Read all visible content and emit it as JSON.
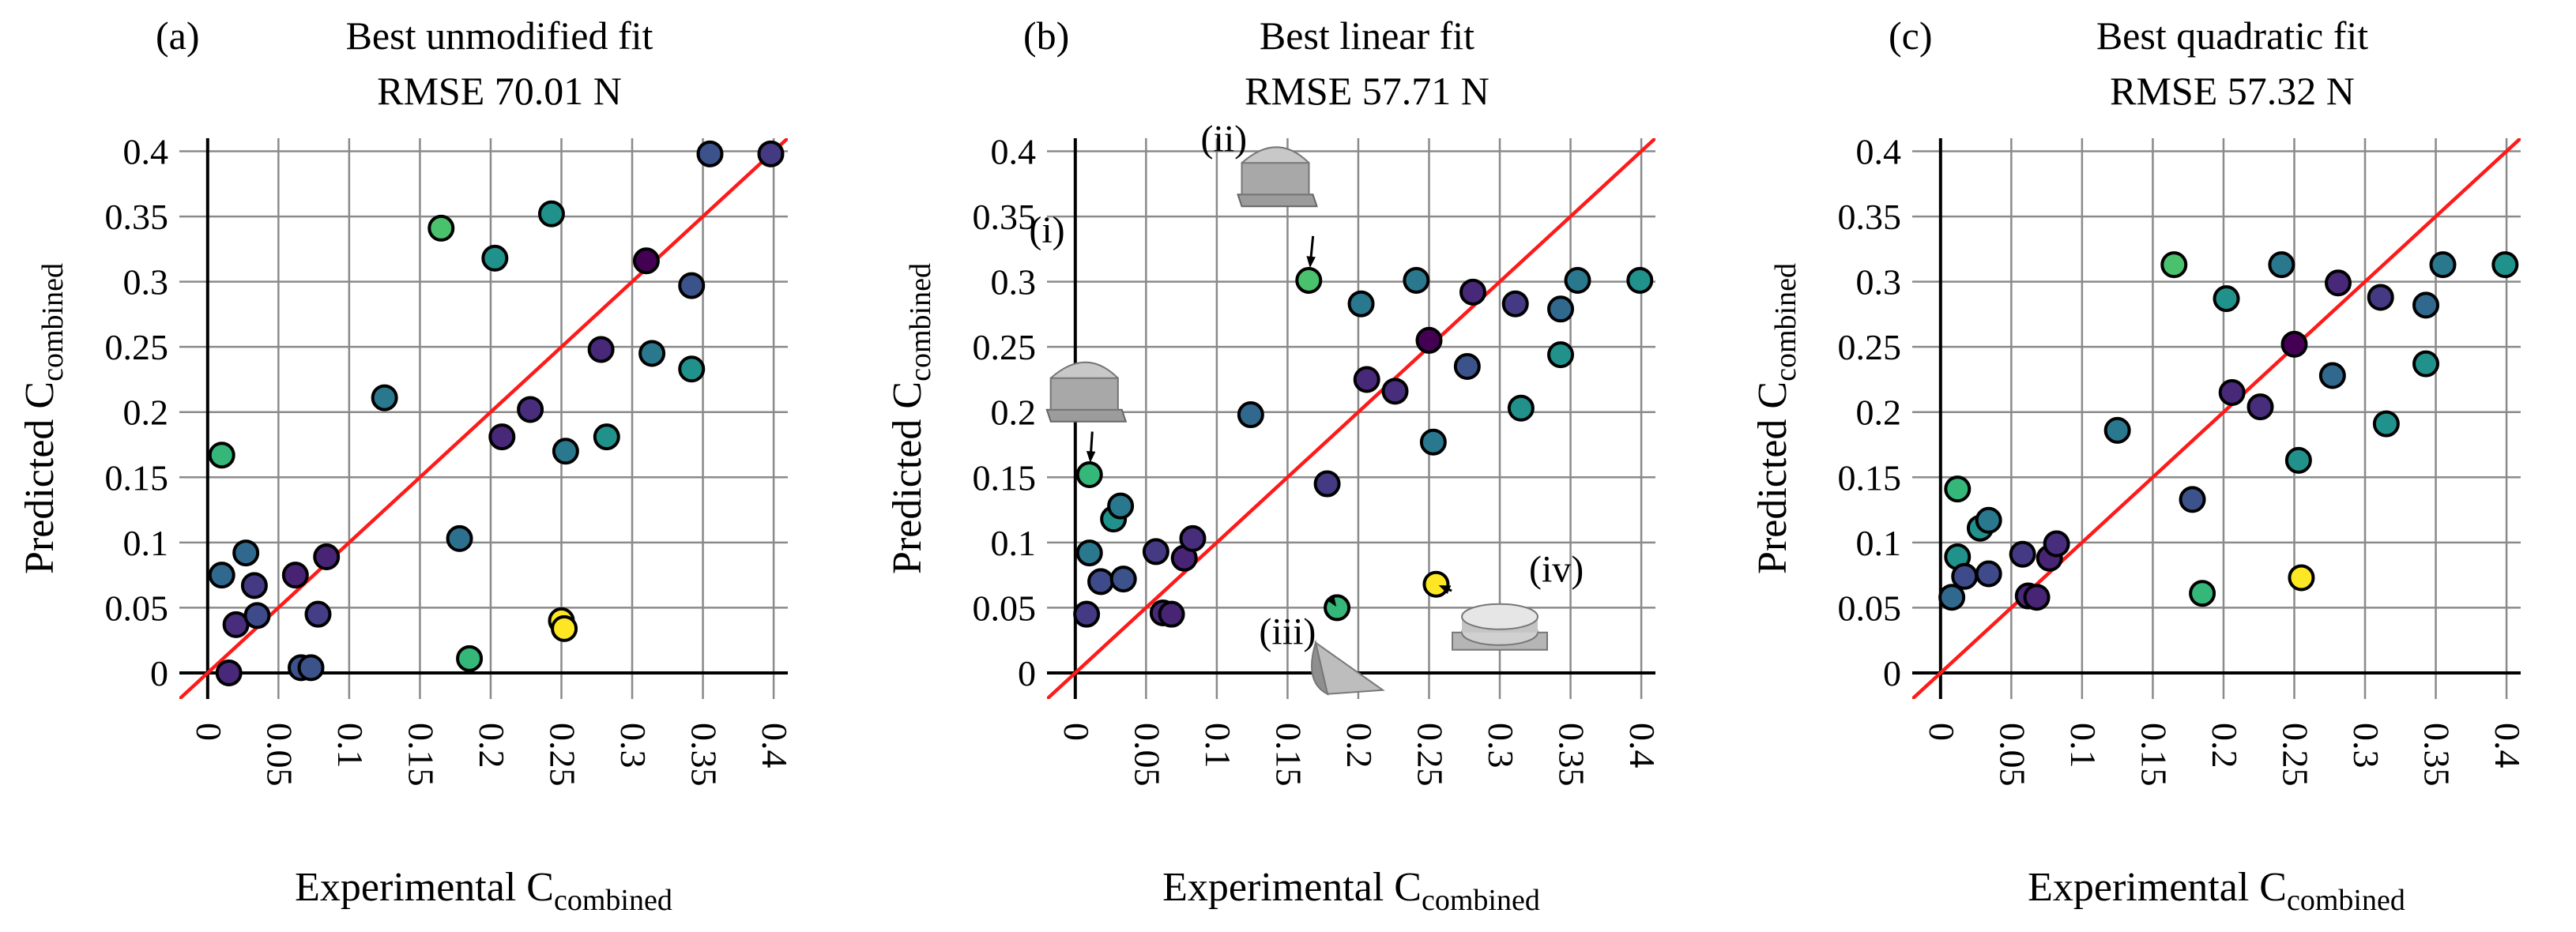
{
  "chart_data": [
    {
      "type": "scatter",
      "panel": "(a)",
      "title": "Best unmodified fit",
      "subtitle": "RMSE 70.01 N",
      "xlabel": "Experimental C",
      "xlabel_sub": "combined",
      "ylabel": "Predicted C",
      "ylabel_sub": "combined",
      "xlim": [
        -0.02,
        0.41
      ],
      "ylim": [
        -0.02,
        0.41
      ],
      "xticks": [
        "0",
        "0.05",
        "0.1",
        "0.15",
        "0.2",
        "0.25",
        "0.3",
        "0.35",
        "0.4"
      ],
      "yticks": [
        "0",
        "0.05",
        "0.1",
        "0.15",
        "0.2",
        "0.25",
        "0.3",
        "0.35",
        "0.4"
      ],
      "reference_line": "y = x",
      "points": [
        {
          "x": 0.01,
          "y": 0.167,
          "color": "#35b779"
        },
        {
          "x": 0.01,
          "y": 0.075,
          "color": "#31688e"
        },
        {
          "x": 0.015,
          "y": 0.0,
          "color": "#482878"
        },
        {
          "x": 0.02,
          "y": 0.037,
          "color": "#472d7b"
        },
        {
          "x": 0.027,
          "y": 0.092,
          "color": "#31688e"
        },
        {
          "x": 0.033,
          "y": 0.067,
          "color": "#443983"
        },
        {
          "x": 0.035,
          "y": 0.044,
          "color": "#3e4a89"
        },
        {
          "x": 0.062,
          "y": 0.075,
          "color": "#482374"
        },
        {
          "x": 0.066,
          "y": 0.004,
          "color": "#3b528b"
        },
        {
          "x": 0.073,
          "y": 0.004,
          "color": "#3b528b"
        },
        {
          "x": 0.078,
          "y": 0.045,
          "color": "#433e85"
        },
        {
          "x": 0.084,
          "y": 0.089,
          "color": "#482475"
        },
        {
          "x": 0.125,
          "y": 0.211,
          "color": "#2a788e"
        },
        {
          "x": 0.165,
          "y": 0.341,
          "color": "#4ac16d"
        },
        {
          "x": 0.178,
          "y": 0.103,
          "color": "#2d708e"
        },
        {
          "x": 0.185,
          "y": 0.011,
          "color": "#35b779"
        },
        {
          "x": 0.203,
          "y": 0.318,
          "color": "#21918c"
        },
        {
          "x": 0.208,
          "y": 0.181,
          "color": "#482878"
        },
        {
          "x": 0.228,
          "y": 0.202,
          "color": "#472d7b"
        },
        {
          "x": 0.243,
          "y": 0.352,
          "color": "#21918c"
        },
        {
          "x": 0.25,
          "y": 0.04,
          "color": "#fde725"
        },
        {
          "x": 0.252,
          "y": 0.034,
          "color": "#fde725"
        },
        {
          "x": 0.253,
          "y": 0.17,
          "color": "#2a788e"
        },
        {
          "x": 0.278,
          "y": 0.248,
          "color": "#482878"
        },
        {
          "x": 0.282,
          "y": 0.181,
          "color": "#21918c"
        },
        {
          "x": 0.31,
          "y": 0.316,
          "color": "#440154"
        },
        {
          "x": 0.314,
          "y": 0.245,
          "color": "#2a788e"
        },
        {
          "x": 0.342,
          "y": 0.297,
          "color": "#3b528b"
        },
        {
          "x": 0.342,
          "y": 0.233,
          "color": "#21918c"
        },
        {
          "x": 0.355,
          "y": 0.398,
          "color": "#3b528b"
        },
        {
          "x": 0.398,
          "y": 0.398,
          "color": "#443983"
        }
      ]
    },
    {
      "type": "scatter",
      "panel": "(b)",
      "title": "Best linear fit",
      "subtitle": "RMSE 57.71 N",
      "xlabel": "Experimental C",
      "xlabel_sub": "combined",
      "ylabel": "Predicted C",
      "ylabel_sub": "combined",
      "xlim": [
        -0.02,
        0.41
      ],
      "ylim": [
        -0.02,
        0.41
      ],
      "xticks": [
        "0",
        "0.05",
        "0.1",
        "0.15",
        "0.2",
        "0.25",
        "0.3",
        "0.35",
        "0.4"
      ],
      "yticks": [
        "0",
        "0.05",
        "0.1",
        "0.15",
        "0.2",
        "0.25",
        "0.3",
        "0.35",
        "0.4"
      ],
      "reference_line": "y = x",
      "annotations": [
        {
          "label": "(i)",
          "target": {
            "x": 0.01,
            "y": 0.152
          }
        },
        {
          "label": "(ii)",
          "target": {
            "x": 0.165,
            "y": 0.301
          }
        },
        {
          "label": "(iii)",
          "target": {
            "x": 0.185,
            "y": 0.05
          }
        },
        {
          "label": "(iv)",
          "target": {
            "x": 0.255,
            "y": 0.068
          }
        }
      ],
      "points": [
        {
          "x": 0.01,
          "y": 0.152,
          "color": "#35b779"
        },
        {
          "x": 0.01,
          "y": 0.092,
          "color": "#2a788e"
        },
        {
          "x": 0.008,
          "y": 0.045,
          "color": "#443983"
        },
        {
          "x": 0.018,
          "y": 0.07,
          "color": "#3e4a89"
        },
        {
          "x": 0.027,
          "y": 0.118,
          "color": "#21918c"
        },
        {
          "x": 0.032,
          "y": 0.128,
          "color": "#2a788e"
        },
        {
          "x": 0.034,
          "y": 0.072,
          "color": "#3b528b"
        },
        {
          "x": 0.057,
          "y": 0.093,
          "color": "#443983"
        },
        {
          "x": 0.062,
          "y": 0.046,
          "color": "#482878"
        },
        {
          "x": 0.068,
          "y": 0.045,
          "color": "#482475"
        },
        {
          "x": 0.077,
          "y": 0.088,
          "color": "#482475"
        },
        {
          "x": 0.083,
          "y": 0.103,
          "color": "#472d7b"
        },
        {
          "x": 0.124,
          "y": 0.198,
          "color": "#31688e"
        },
        {
          "x": 0.165,
          "y": 0.301,
          "color": "#4ac16d"
        },
        {
          "x": 0.178,
          "y": 0.145,
          "color": "#443983"
        },
        {
          "x": 0.185,
          "y": 0.05,
          "color": "#35b779"
        },
        {
          "x": 0.202,
          "y": 0.283,
          "color": "#2a788e"
        },
        {
          "x": 0.206,
          "y": 0.225,
          "color": "#482878"
        },
        {
          "x": 0.226,
          "y": 0.216,
          "color": "#472d7b"
        },
        {
          "x": 0.241,
          "y": 0.301,
          "color": "#2a788e"
        },
        {
          "x": 0.25,
          "y": 0.255,
          "color": "#440154"
        },
        {
          "x": 0.255,
          "y": 0.068,
          "color": "#fde725"
        },
        {
          "x": 0.253,
          "y": 0.177,
          "color": "#2a788e"
        },
        {
          "x": 0.277,
          "y": 0.235,
          "color": "#3b528b"
        },
        {
          "x": 0.281,
          "y": 0.292,
          "color": "#482878"
        },
        {
          "x": 0.311,
          "y": 0.283,
          "color": "#443983"
        },
        {
          "x": 0.315,
          "y": 0.203,
          "color": "#21918c"
        },
        {
          "x": 0.343,
          "y": 0.279,
          "color": "#31688e"
        },
        {
          "x": 0.343,
          "y": 0.244,
          "color": "#21918c"
        },
        {
          "x": 0.355,
          "y": 0.301,
          "color": "#2a788e"
        },
        {
          "x": 0.399,
          "y": 0.301,
          "color": "#21918c"
        }
      ]
    },
    {
      "type": "scatter",
      "panel": "(c)",
      "title": "Best quadratic fit",
      "subtitle": "RMSE 57.32 N",
      "xlabel": "Experimental C",
      "xlabel_sub": "combined",
      "ylabel": "Predicted C",
      "ylabel_sub": "combined",
      "xlim": [
        -0.02,
        0.41
      ],
      "ylim": [
        -0.02,
        0.41
      ],
      "xticks": [
        "0",
        "0.05",
        "0.1",
        "0.15",
        "0.2",
        "0.25",
        "0.3",
        "0.35",
        "0.4"
      ],
      "yticks": [
        "0",
        "0.05",
        "0.1",
        "0.15",
        "0.2",
        "0.25",
        "0.3",
        "0.35",
        "0.4"
      ],
      "reference_line": "y = x",
      "points": [
        {
          "x": 0.012,
          "y": 0.141,
          "color": "#35b779"
        },
        {
          "x": 0.012,
          "y": 0.089,
          "color": "#21918c"
        },
        {
          "x": 0.008,
          "y": 0.058,
          "color": "#31688e"
        },
        {
          "x": 0.017,
          "y": 0.074,
          "color": "#3e4a89"
        },
        {
          "x": 0.028,
          "y": 0.111,
          "color": "#21918c"
        },
        {
          "x": 0.034,
          "y": 0.117,
          "color": "#2a788e"
        },
        {
          "x": 0.034,
          "y": 0.076,
          "color": "#3e4a89"
        },
        {
          "x": 0.058,
          "y": 0.091,
          "color": "#443983"
        },
        {
          "x": 0.062,
          "y": 0.059,
          "color": "#482878"
        },
        {
          "x": 0.068,
          "y": 0.058,
          "color": "#482475"
        },
        {
          "x": 0.077,
          "y": 0.088,
          "color": "#482475"
        },
        {
          "x": 0.082,
          "y": 0.099,
          "color": "#472d7b"
        },
        {
          "x": 0.125,
          "y": 0.186,
          "color": "#2a788e"
        },
        {
          "x": 0.165,
          "y": 0.313,
          "color": "#4ac16d"
        },
        {
          "x": 0.178,
          "y": 0.133,
          "color": "#3b528b"
        },
        {
          "x": 0.185,
          "y": 0.061,
          "color": "#35b779"
        },
        {
          "x": 0.202,
          "y": 0.287,
          "color": "#21918c"
        },
        {
          "x": 0.206,
          "y": 0.215,
          "color": "#482878"
        },
        {
          "x": 0.226,
          "y": 0.204,
          "color": "#472d7b"
        },
        {
          "x": 0.241,
          "y": 0.313,
          "color": "#2a788e"
        },
        {
          "x": 0.25,
          "y": 0.252,
          "color": "#440154"
        },
        {
          "x": 0.255,
          "y": 0.073,
          "color": "#fde725"
        },
        {
          "x": 0.253,
          "y": 0.163,
          "color": "#21918c"
        },
        {
          "x": 0.277,
          "y": 0.228,
          "color": "#31688e"
        },
        {
          "x": 0.281,
          "y": 0.299,
          "color": "#482878"
        },
        {
          "x": 0.311,
          "y": 0.288,
          "color": "#443983"
        },
        {
          "x": 0.315,
          "y": 0.191,
          "color": "#21918c"
        },
        {
          "x": 0.343,
          "y": 0.282,
          "color": "#31688e"
        },
        {
          "x": 0.343,
          "y": 0.237,
          "color": "#21918c"
        },
        {
          "x": 0.355,
          "y": 0.313,
          "color": "#2a788e"
        },
        {
          "x": 0.399,
          "y": 0.313,
          "color": "#21918c"
        }
      ]
    }
  ]
}
